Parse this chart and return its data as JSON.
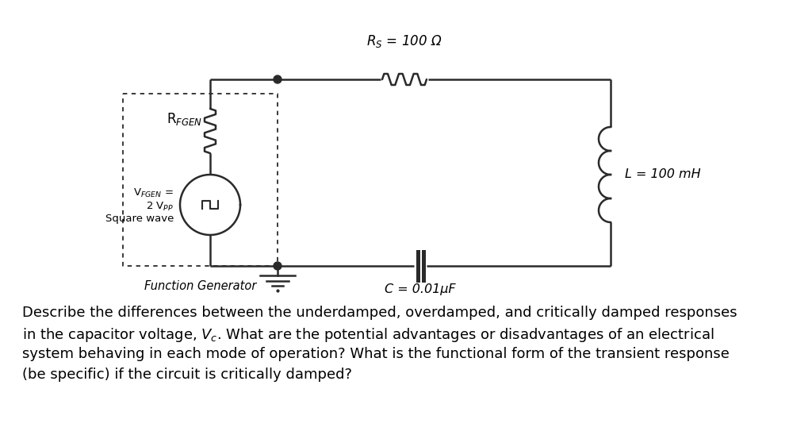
{
  "bg_color": "#ffffff",
  "circuit": {
    "rs_label": "R$_S$ = 100 Ω",
    "l_label": "L = 100 mH",
    "c_label": "C = 0.01μF",
    "rfgen_label": "R$_{FGEN}$",
    "vfgen_label1": "V$_{FGEN}$ =",
    "vfgen_label2": "2 V$_{PP}$",
    "vfgen_label3": "Square wave",
    "fg_label": "Function Generator"
  },
  "font_size_desc": 13.0,
  "line_color": "#2a2a2a",
  "text_color": "#000000",
  "desc_line1": "Describe the differences between the underdamped, overdamped, and critically damped responses",
  "desc_line2": "in the capacitor voltage, $V_c$. What are the potential advantages or disadvantages of an electrical",
  "desc_line3": "system behaving in each mode of operation? What is the functional form of the transient response",
  "desc_line4": "(be specific) if the circuit is critically damped?"
}
